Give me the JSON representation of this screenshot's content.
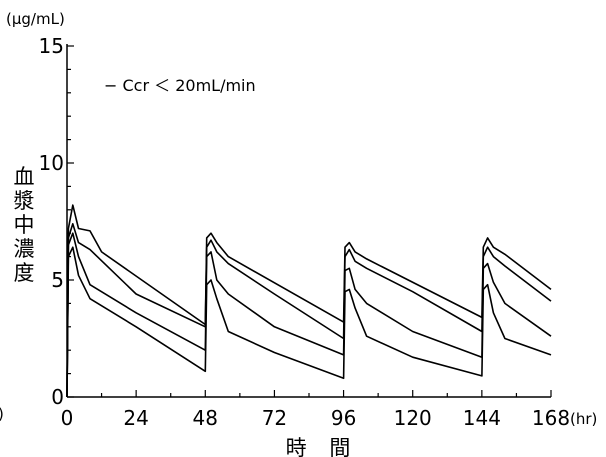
{
  "chart_data": {
    "type": "line",
    "y_unit": "(µg/mL)",
    "x_unit": "(hr)",
    "xlabel": "時 間",
    "ylabel_chars": [
      "血",
      "漿",
      "中",
      "濃",
      "度"
    ],
    "legend_text": "− Ccr ＜ 20mL/min",
    "left_clipped_label": ")",
    "xlim": [
      0,
      168
    ],
    "ylim": [
      0,
      15
    ],
    "x_ticks": [
      0,
      24,
      48,
      72,
      96,
      120,
      144,
      168
    ],
    "x_tick_labels": [
      "0",
      "24",
      "48",
      "72",
      "96",
      "120",
      "144",
      "168"
    ],
    "y_ticks": [
      0,
      5,
      10,
      15
    ],
    "y_tick_labels": [
      "0",
      "5",
      "10",
      "15"
    ],
    "grid": false,
    "series": [
      {
        "values": [
          [
            0,
            0
          ],
          [
            0.5,
            7.2
          ],
          [
            2,
            8.2
          ],
          [
            4,
            7.2
          ],
          [
            8,
            7.1
          ],
          [
            12,
            6.2
          ],
          [
            48,
            3.1
          ],
          [
            48.5,
            6.8
          ],
          [
            50,
            7.0
          ],
          [
            52,
            6.6
          ],
          [
            56,
            6.0
          ],
          [
            96,
            3.2
          ],
          [
            96.5,
            6.4
          ],
          [
            98,
            6.6
          ],
          [
            100,
            6.2
          ],
          [
            104,
            5.9
          ],
          [
            144,
            3.4
          ],
          [
            144.5,
            6.4
          ],
          [
            146,
            6.8
          ],
          [
            148,
            6.4
          ],
          [
            152,
            6.1
          ],
          [
            168,
            4.6
          ]
        ]
      },
      {
        "values": [
          [
            0,
            0
          ],
          [
            0.5,
            6.8
          ],
          [
            2,
            7.4
          ],
          [
            4,
            6.6
          ],
          [
            8,
            6.3
          ],
          [
            24,
            4.4
          ],
          [
            48,
            3.0
          ],
          [
            48.5,
            6.4
          ],
          [
            50,
            6.7
          ],
          [
            52,
            6.2
          ],
          [
            56,
            5.7
          ],
          [
            72,
            4.4
          ],
          [
            96,
            2.5
          ],
          [
            96.5,
            6.0
          ],
          [
            98,
            6.3
          ],
          [
            100,
            5.8
          ],
          [
            104,
            5.5
          ],
          [
            120,
            4.5
          ],
          [
            144,
            2.8
          ],
          [
            144.5,
            6.0
          ],
          [
            146,
            6.4
          ],
          [
            148,
            6.0
          ],
          [
            152,
            5.6
          ],
          [
            168,
            4.1
          ]
        ]
      },
      {
        "values": [
          [
            0,
            0
          ],
          [
            0.5,
            6.5
          ],
          [
            2,
            7.0
          ],
          [
            4,
            6.0
          ],
          [
            8,
            4.8
          ],
          [
            24,
            3.6
          ],
          [
            48,
            2.0
          ],
          [
            48.5,
            6.0
          ],
          [
            50,
            6.2
          ],
          [
            52,
            5.0
          ],
          [
            56,
            4.4
          ],
          [
            72,
            3.0
          ],
          [
            96,
            1.8
          ],
          [
            96.5,
            5.4
          ],
          [
            98,
            5.5
          ],
          [
            100,
            4.6
          ],
          [
            104,
            4.0
          ],
          [
            120,
            2.8
          ],
          [
            144,
            1.7
          ],
          [
            144.5,
            5.5
          ],
          [
            146,
            5.7
          ],
          [
            148,
            4.9
          ],
          [
            152,
            4.0
          ],
          [
            168,
            2.6
          ]
        ]
      },
      {
        "values": [
          [
            0,
            0
          ],
          [
            0.5,
            6.0
          ],
          [
            2,
            6.4
          ],
          [
            4,
            5.2
          ],
          [
            8,
            4.2
          ],
          [
            24,
            3.0
          ],
          [
            48,
            1.1
          ],
          [
            48.5,
            4.8
          ],
          [
            50,
            5.0
          ],
          [
            52,
            4.2
          ],
          [
            56,
            2.8
          ],
          [
            72,
            1.9
          ],
          [
            96,
            0.8
          ],
          [
            96.5,
            4.5
          ],
          [
            98,
            4.6
          ],
          [
            100,
            3.8
          ],
          [
            104,
            2.6
          ],
          [
            120,
            1.7
          ],
          [
            144,
            0.9
          ],
          [
            144.5,
            4.6
          ],
          [
            146,
            4.8
          ],
          [
            148,
            3.6
          ],
          [
            152,
            2.5
          ],
          [
            168,
            1.8
          ]
        ]
      }
    ]
  }
}
